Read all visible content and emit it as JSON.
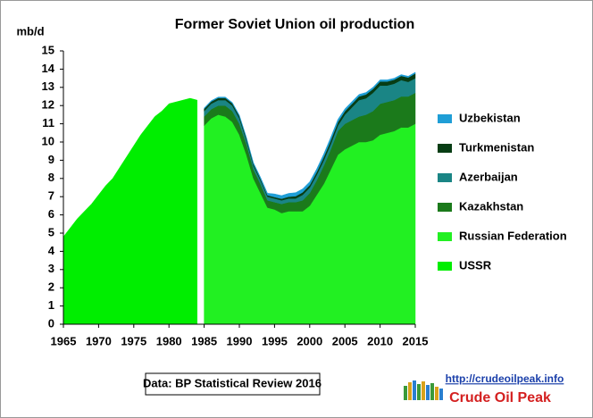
{
  "chart_data": {
    "type": "stacked-area",
    "title": "Former Soviet Union oil production",
    "y_label": "mb/d",
    "source_note": "Data: BP Statistical Review 2016",
    "url": "http://crudeoilpeak.info",
    "brand": "Crude Oil Peak",
    "x": [
      1965,
      1966,
      1967,
      1968,
      1969,
      1970,
      1971,
      1972,
      1973,
      1974,
      1975,
      1976,
      1977,
      1978,
      1979,
      1980,
      1981,
      1982,
      1983,
      1984,
      1985,
      1986,
      1987,
      1988,
      1989,
      1990,
      1991,
      1992,
      1993,
      1994,
      1995,
      1996,
      1997,
      1998,
      1999,
      2000,
      2001,
      2002,
      2003,
      2004,
      2005,
      2006,
      2007,
      2008,
      2009,
      2010,
      2011,
      2012,
      2013,
      2014,
      2015
    ],
    "xlim": [
      1965,
      2015
    ],
    "xticks": [
      1965,
      1970,
      1975,
      1980,
      1985,
      1990,
      1995,
      2000,
      2005,
      2010,
      2015
    ],
    "ylim": [
      0,
      15
    ],
    "yticks": [
      0,
      1,
      2,
      3,
      4,
      5,
      6,
      7,
      8,
      9,
      10,
      11,
      12,
      13,
      14,
      15
    ],
    "series": [
      {
        "name": "USSR",
        "color": "#00ee00",
        "values": [
          4.8,
          5.3,
          5.8,
          6.2,
          6.6,
          7.1,
          7.6,
          8.0,
          8.6,
          9.2,
          9.8,
          10.4,
          10.9,
          11.4,
          11.7,
          12.1,
          12.2,
          12.3,
          12.4,
          12.3,
          null,
          null,
          null,
          null,
          null,
          null,
          null,
          null,
          null,
          null,
          null,
          null,
          null,
          null,
          null,
          null,
          null,
          null,
          null,
          null,
          null,
          null,
          null,
          null,
          null,
          null,
          null,
          null,
          null,
          null,
          null
        ]
      },
      {
        "name": "Russian Federation",
        "color": "#22f022",
        "values": [
          null,
          null,
          null,
          null,
          null,
          null,
          null,
          null,
          null,
          null,
          null,
          null,
          null,
          null,
          null,
          null,
          null,
          null,
          null,
          null,
          10.9,
          11.3,
          11.5,
          11.4,
          11.1,
          10.4,
          9.3,
          8.0,
          7.2,
          6.4,
          6.3,
          6.1,
          6.2,
          6.2,
          6.2,
          6.5,
          7.1,
          7.7,
          8.5,
          9.3,
          9.6,
          9.8,
          10.0,
          10.0,
          10.1,
          10.4,
          10.5,
          10.6,
          10.8,
          10.8,
          11.0
        ]
      },
      {
        "name": "Kazakhstan",
        "color": "#1b7a1b",
        "values": [
          null,
          null,
          null,
          null,
          null,
          null,
          null,
          null,
          null,
          null,
          null,
          null,
          null,
          null,
          null,
          null,
          null,
          null,
          null,
          null,
          0.5,
          0.5,
          0.5,
          0.6,
          0.6,
          0.6,
          0.6,
          0.5,
          0.5,
          0.4,
          0.4,
          0.5,
          0.5,
          0.5,
          0.6,
          0.7,
          0.8,
          1.0,
          1.1,
          1.3,
          1.4,
          1.4,
          1.4,
          1.5,
          1.6,
          1.7,
          1.7,
          1.7,
          1.7,
          1.7,
          1.7
        ]
      },
      {
        "name": "Azerbaijan",
        "color": "#1a8585",
        "values": [
          null,
          null,
          null,
          null,
          null,
          null,
          null,
          null,
          null,
          null,
          null,
          null,
          null,
          null,
          null,
          null,
          null,
          null,
          null,
          null,
          0.3,
          0.3,
          0.3,
          0.3,
          0.3,
          0.3,
          0.2,
          0.2,
          0.2,
          0.2,
          0.2,
          0.2,
          0.2,
          0.2,
          0.3,
          0.3,
          0.3,
          0.3,
          0.3,
          0.3,
          0.5,
          0.7,
          0.9,
          0.9,
          1.0,
          1.0,
          0.9,
          0.9,
          0.9,
          0.8,
          0.8
        ]
      },
      {
        "name": "Turkmenistan",
        "color": "#073d14",
        "values": [
          null,
          null,
          null,
          null,
          null,
          null,
          null,
          null,
          null,
          null,
          null,
          null,
          null,
          null,
          null,
          null,
          null,
          null,
          null,
          null,
          0.12,
          0.12,
          0.12,
          0.12,
          0.12,
          0.12,
          0.11,
          0.1,
          0.09,
          0.08,
          0.08,
          0.09,
          0.1,
          0.13,
          0.14,
          0.14,
          0.16,
          0.18,
          0.2,
          0.19,
          0.19,
          0.19,
          0.2,
          0.21,
          0.21,
          0.22,
          0.22,
          0.22,
          0.23,
          0.24,
          0.26
        ]
      },
      {
        "name": "Uzbekistan",
        "color": "#1f9ed6",
        "values": [
          null,
          null,
          null,
          null,
          null,
          null,
          null,
          null,
          null,
          null,
          null,
          null,
          null,
          null,
          null,
          null,
          null,
          null,
          null,
          null,
          0.05,
          0.05,
          0.05,
          0.05,
          0.05,
          0.06,
          0.06,
          0.07,
          0.08,
          0.11,
          0.17,
          0.17,
          0.18,
          0.19,
          0.19,
          0.18,
          0.17,
          0.17,
          0.17,
          0.15,
          0.13,
          0.13,
          0.11,
          0.11,
          0.1,
          0.09,
          0.09,
          0.08,
          0.07,
          0.07,
          0.07
        ]
      }
    ]
  }
}
